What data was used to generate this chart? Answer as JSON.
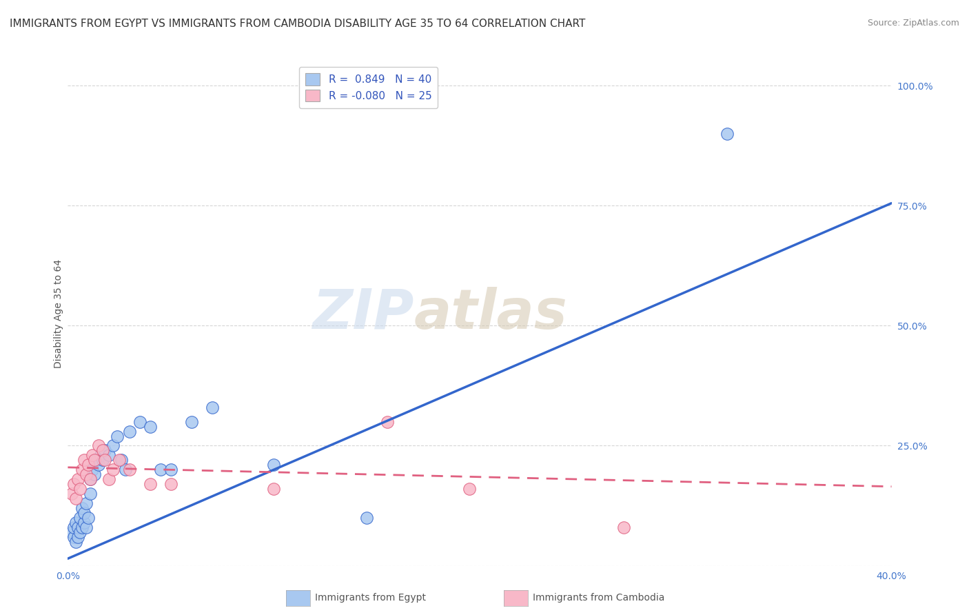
{
  "title": "IMMIGRANTS FROM EGYPT VS IMMIGRANTS FROM CAMBODIA DISABILITY AGE 35 TO 64 CORRELATION CHART",
  "source": "Source: ZipAtlas.com",
  "ylabel_label": "Disability Age 35 to 64",
  "xlim": [
    0.0,
    0.4
  ],
  "ylim": [
    0.0,
    1.05
  ],
  "x_ticks": [
    0.0,
    0.1,
    0.2,
    0.3,
    0.4
  ],
  "x_tick_labels": [
    "0.0%",
    "",
    "",
    "",
    "40.0%"
  ],
  "y_ticks": [
    0.0,
    0.25,
    0.5,
    0.75,
    1.0
  ],
  "y_tick_labels": [
    "",
    "25.0%",
    "50.0%",
    "75.0%",
    "100.0%"
  ],
  "egypt_color": "#A8C8F0",
  "egypt_color_dark": "#3366CC",
  "cambodia_color": "#F8B8C8",
  "cambodia_color_dark": "#E06080",
  "egypt_R": 0.849,
  "egypt_N": 40,
  "cambodia_R": -0.08,
  "cambodia_N": 25,
  "watermark_part1": "ZIP",
  "watermark_part2": "atlas",
  "egypt_scatter_x": [
    0.002,
    0.003,
    0.003,
    0.004,
    0.004,
    0.005,
    0.005,
    0.006,
    0.006,
    0.007,
    0.007,
    0.008,
    0.008,
    0.009,
    0.009,
    0.01,
    0.011,
    0.011,
    0.012,
    0.013,
    0.014,
    0.015,
    0.016,
    0.017,
    0.018,
    0.02,
    0.022,
    0.024,
    0.026,
    0.028,
    0.03,
    0.035,
    0.04,
    0.045,
    0.05,
    0.06,
    0.07,
    0.1,
    0.145,
    0.32
  ],
  "egypt_scatter_y": [
    0.07,
    0.06,
    0.08,
    0.05,
    0.09,
    0.06,
    0.08,
    0.07,
    0.1,
    0.08,
    0.12,
    0.09,
    0.11,
    0.08,
    0.13,
    0.1,
    0.15,
    0.18,
    0.2,
    0.19,
    0.22,
    0.21,
    0.23,
    0.22,
    0.24,
    0.23,
    0.25,
    0.27,
    0.22,
    0.2,
    0.28,
    0.3,
    0.29,
    0.2,
    0.2,
    0.3,
    0.33,
    0.21,
    0.1,
    0.9
  ],
  "cambodia_scatter_x": [
    0.002,
    0.003,
    0.004,
    0.005,
    0.006,
    0.007,
    0.008,
    0.009,
    0.01,
    0.011,
    0.012,
    0.013,
    0.015,
    0.017,
    0.018,
    0.02,
    0.022,
    0.025,
    0.03,
    0.04,
    0.05,
    0.1,
    0.155,
    0.195,
    0.27
  ],
  "cambodia_scatter_y": [
    0.15,
    0.17,
    0.14,
    0.18,
    0.16,
    0.2,
    0.22,
    0.19,
    0.21,
    0.18,
    0.23,
    0.22,
    0.25,
    0.24,
    0.22,
    0.18,
    0.2,
    0.22,
    0.2,
    0.17,
    0.17,
    0.16,
    0.3,
    0.16,
    0.08
  ],
  "egypt_trend_x": [
    0.0,
    0.4
  ],
  "egypt_trend_y": [
    0.015,
    0.755
  ],
  "cambodia_trend_x": [
    0.0,
    0.4
  ],
  "cambodia_trend_y": [
    0.205,
    0.165
  ],
  "background_color": "#FFFFFF",
  "grid_color": "#CCCCCC",
  "title_fontsize": 11,
  "axis_fontsize": 10,
  "tick_fontsize": 10,
  "tick_color": "#4477CC",
  "legend_fontsize": 11,
  "legend_r_color": "#3355BB",
  "legend_n_color": "#333333"
}
